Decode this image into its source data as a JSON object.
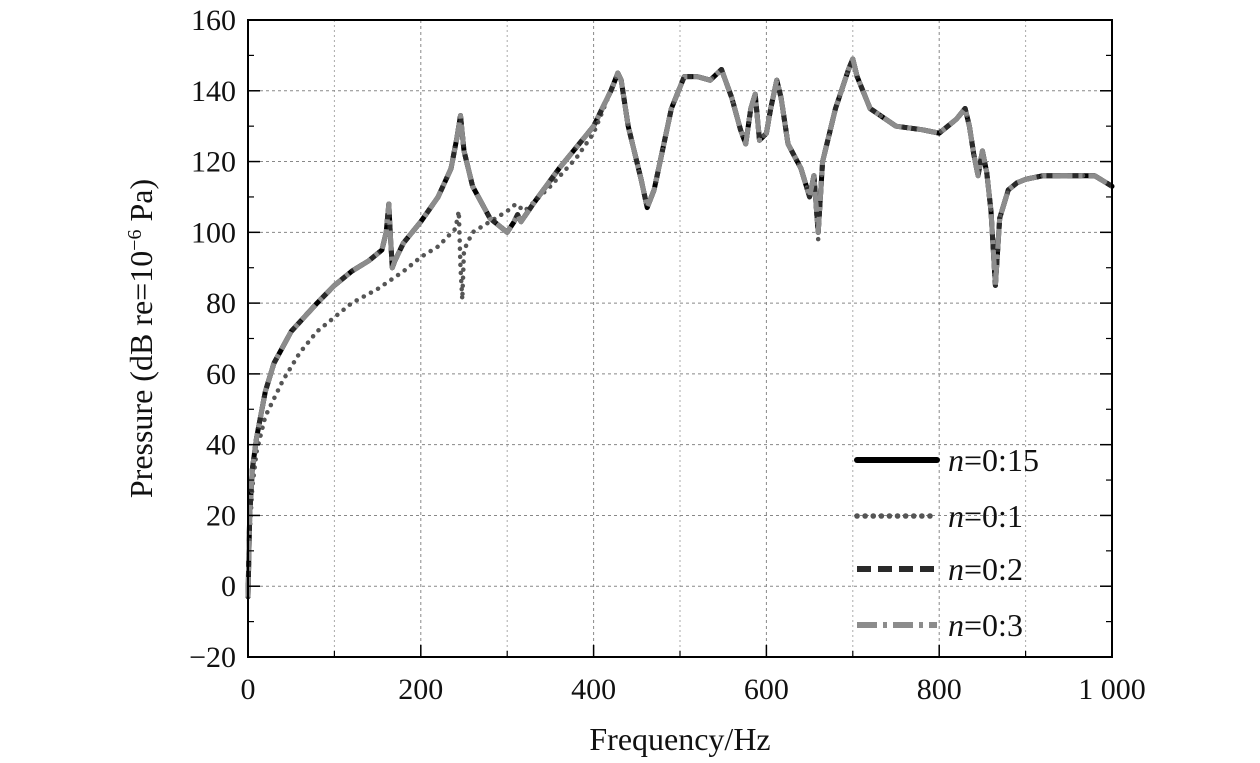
{
  "chart_data": {
    "type": "line",
    "title": "",
    "xlabel": "Frequency/Hz",
    "ylabel_prefix": "Pressure (dB re=10",
    "ylabel_exponent": "−6",
    "ylabel_suffix": " Pa)",
    "xlim": [
      0,
      1000
    ],
    "ylim": [
      -20,
      160
    ],
    "xticks": [
      0,
      200,
      400,
      600,
      800,
      1000
    ],
    "xtick_labels": [
      "0",
      "200",
      "400",
      "600",
      "800",
      "1 000"
    ],
    "yticks": [
      -20,
      0,
      20,
      40,
      60,
      80,
      100,
      120,
      140,
      160
    ],
    "ytick_labels": [
      "−20",
      "0",
      "20",
      "40",
      "60",
      "80",
      "100",
      "120",
      "140",
      "160"
    ],
    "grid": true,
    "legend_position": "bottom-right",
    "series": [
      {
        "name_var": "n",
        "name_rest": "=0:15",
        "style": "solid",
        "color": "#000000",
        "x": [
          0,
          2,
          5,
          10,
          20,
          30,
          50,
          80,
          100,
          120,
          140,
          155,
          160,
          163,
          165,
          167,
          170,
          180,
          200,
          220,
          235,
          242,
          246,
          250,
          260,
          280,
          300,
          308,
          312,
          316,
          330,
          360,
          400,
          420,
          428,
          432,
          440,
          455,
          462,
          470,
          490,
          505,
          520,
          535,
          548,
          560,
          570,
          576,
          582,
          587,
          592,
          600,
          605,
          612,
          617,
          625,
          640,
          650,
          655,
          660,
          665,
          680,
          695,
          700,
          705,
          720,
          750,
          780,
          800,
          820,
          830,
          835,
          840,
          845,
          850,
          855,
          860,
          865,
          870,
          880,
          890,
          900,
          920,
          950,
          980,
          1000
        ],
        "values": [
          -3,
          20,
          33,
          42,
          55,
          63,
          72,
          80,
          85,
          89,
          92,
          95,
          100,
          108,
          98,
          90,
          92,
          97,
          103,
          110,
          118,
          127,
          133,
          123,
          113,
          104,
          100,
          103,
          105,
          103,
          108,
          118,
          130,
          140,
          145,
          143,
          130,
          115,
          107,
          112,
          135,
          144,
          144,
          143,
          146,
          138,
          129,
          125,
          135,
          139,
          126,
          128,
          135,
          143,
          138,
          125,
          118,
          110,
          116,
          100,
          120,
          135,
          146,
          149,
          144,
          135,
          130,
          129,
          128,
          132,
          135,
          130,
          122,
          116,
          123,
          117,
          106,
          85,
          104,
          112,
          114,
          115,
          116,
          116,
          116,
          113
        ]
      },
      {
        "name_var": "n",
        "name_rest": "=0:1",
        "style": "dotted",
        "color": "#555555",
        "x": [
          0,
          2,
          5,
          10,
          20,
          40,
          60,
          80,
          100,
          120,
          150,
          180,
          200,
          220,
          240,
          244,
          246,
          248,
          250,
          260,
          280,
          300,
          310,
          320,
          350,
          380,
          400,
          420,
          428,
          432,
          440,
          455,
          462,
          470,
          490,
          505,
          520,
          535,
          548,
          560,
          570,
          576,
          582,
          587,
          592,
          600,
          605,
          612,
          617,
          625,
          640,
          650,
          655,
          658,
          660,
          662,
          665,
          680,
          695,
          700,
          705,
          720,
          750,
          780,
          800,
          820,
          830,
          835,
          840,
          845,
          850,
          855,
          860,
          865,
          870,
          880,
          890,
          900,
          920,
          950,
          980,
          1000
        ],
        "values": [
          -3,
          15,
          28,
          38,
          48,
          58,
          66,
          72,
          76,
          80,
          84,
          89,
          93,
          96,
          101,
          106,
          90,
          81,
          95,
          100,
          103,
          106,
          108,
          106,
          113,
          121,
          128,
          140,
          145,
          143,
          130,
          115,
          107,
          112,
          135,
          144,
          144,
          143,
          146,
          138,
          129,
          125,
          135,
          139,
          126,
          128,
          135,
          143,
          138,
          125,
          118,
          110,
          114,
          105,
          98,
          108,
          120,
          135,
          146,
          149,
          144,
          135,
          130,
          129,
          128,
          132,
          135,
          130,
          122,
          116,
          123,
          117,
          106,
          85,
          104,
          112,
          114,
          115,
          116,
          116,
          116,
          113
        ]
      },
      {
        "name_var": "n",
        "name_rest": "=0:2",
        "style": "dashed",
        "color": "#2a2a2a",
        "x": [
          0,
          2,
          5,
          10,
          20,
          30,
          50,
          80,
          100,
          120,
          140,
          155,
          160,
          163,
          165,
          167,
          170,
          180,
          200,
          220,
          235,
          242,
          246,
          250,
          260,
          280,
          300,
          308,
          312,
          316,
          330,
          360,
          400,
          420,
          428,
          432,
          440,
          455,
          462,
          470,
          490,
          505,
          520,
          535,
          548,
          560,
          570,
          576,
          582,
          587,
          592,
          600,
          605,
          612,
          617,
          625,
          640,
          650,
          655,
          660,
          665,
          680,
          695,
          700,
          705,
          720,
          750,
          780,
          800,
          820,
          830,
          835,
          840,
          845,
          850,
          855,
          860,
          865,
          870,
          880,
          890,
          900,
          920,
          950,
          980,
          1000
        ],
        "values": [
          -3,
          20,
          33,
          42,
          55,
          63,
          72,
          80,
          85,
          89,
          92,
          95,
          100,
          108,
          98,
          90,
          92,
          97,
          103,
          110,
          118,
          127,
          133,
          123,
          113,
          104,
          100,
          103,
          105,
          103,
          108,
          118,
          130,
          140,
          145,
          143,
          130,
          115,
          107,
          112,
          135,
          144,
          144,
          143,
          146,
          138,
          129,
          125,
          135,
          139,
          126,
          128,
          135,
          143,
          138,
          125,
          118,
          110,
          116,
          100,
          120,
          135,
          146,
          149,
          144,
          135,
          130,
          129,
          128,
          132,
          135,
          130,
          122,
          116,
          123,
          117,
          106,
          85,
          104,
          112,
          114,
          115,
          116,
          116,
          116,
          113
        ]
      },
      {
        "name_var": "n",
        "name_rest": "=0:3",
        "style": "dashdot",
        "color": "#8c8c8c",
        "x": [
          0,
          2,
          5,
          10,
          20,
          30,
          50,
          80,
          100,
          120,
          140,
          155,
          160,
          163,
          165,
          167,
          170,
          180,
          200,
          220,
          235,
          242,
          246,
          250,
          260,
          280,
          300,
          308,
          312,
          316,
          330,
          360,
          400,
          420,
          428,
          432,
          440,
          455,
          462,
          470,
          490,
          505,
          520,
          535,
          548,
          560,
          570,
          576,
          582,
          587,
          592,
          600,
          605,
          612,
          617,
          625,
          640,
          650,
          655,
          660,
          665,
          680,
          695,
          700,
          705,
          720,
          750,
          780,
          800,
          820,
          830,
          835,
          840,
          845,
          850,
          855,
          860,
          865,
          870,
          880,
          890,
          900,
          920,
          950,
          980,
          1000
        ],
        "values": [
          -3,
          20,
          33,
          42,
          55,
          63,
          72,
          80,
          85,
          89,
          92,
          95,
          100,
          108,
          98,
          90,
          92,
          97,
          103,
          110,
          118,
          127,
          133,
          123,
          113,
          104,
          100,
          103,
          105,
          103,
          108,
          118,
          130,
          140,
          145,
          143,
          130,
          115,
          107,
          112,
          135,
          144,
          144,
          143,
          146,
          138,
          129,
          125,
          135,
          139,
          126,
          128,
          135,
          143,
          138,
          125,
          118,
          110,
          116,
          100,
          120,
          135,
          146,
          149,
          144,
          135,
          130,
          129,
          128,
          132,
          135,
          130,
          122,
          116,
          123,
          117,
          106,
          85,
          104,
          112,
          114,
          115,
          116,
          116,
          116,
          113
        ]
      }
    ]
  }
}
